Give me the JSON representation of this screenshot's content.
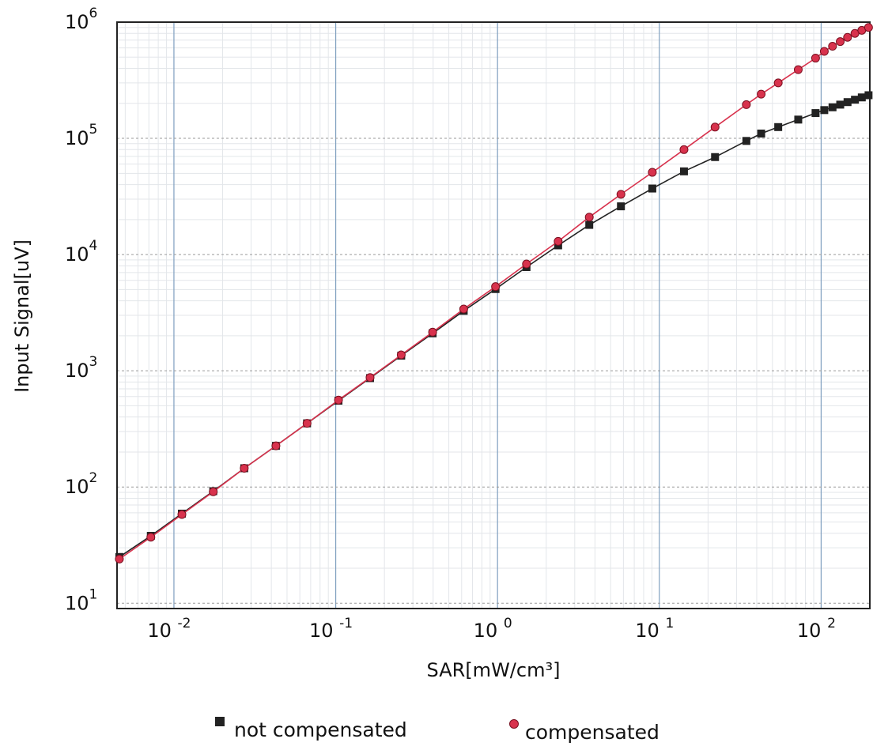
{
  "chart_data": {
    "type": "line",
    "xscale": "log",
    "yscale": "log",
    "xlabel": "SAR[mW/cm³]",
    "ylabel": "Input Signal[uV]",
    "xlim": [
      0.00445,
      200
    ],
    "ylim": [
      9,
      1000000
    ],
    "grid": true,
    "legend_position": "bottom",
    "x_ticks": [
      {
        "base": "10",
        "exp": "-2",
        "value": 0.01
      },
      {
        "base": "10",
        "exp": "-1",
        "value": 0.1
      },
      {
        "base": "10",
        "exp": "0",
        "value": 1
      },
      {
        "base": "10",
        "exp": "1",
        "value": 10
      },
      {
        "base": "10",
        "exp": "2",
        "value": 100
      }
    ],
    "y_ticks": [
      {
        "base": "10",
        "exp": "1",
        "value": 10
      },
      {
        "base": "10",
        "exp": "2",
        "value": 100
      },
      {
        "base": "10",
        "exp": "3",
        "value": 1000
      },
      {
        "base": "10",
        "exp": "4",
        "value": 10000
      },
      {
        "base": "10",
        "exp": "5",
        "value": 100000
      },
      {
        "base": "10",
        "exp": "6",
        "value": 1000000
      }
    ],
    "series": [
      {
        "name": "not compensated",
        "color": "#222222",
        "marker": "square",
        "x": [
          0.0046,
          0.0072,
          0.0112,
          0.0175,
          0.0272,
          0.0427,
          0.0665,
          0.104,
          0.163,
          0.254,
          0.397,
          0.618,
          0.972,
          1.51,
          2.37,
          3.69,
          5.79,
          9.05,
          14.2,
          22.1,
          34.5,
          42.6,
          54.3,
          72.2,
          92.4,
          104.6,
          117.6,
          131.2,
          145.6,
          161.8,
          178.4,
          196.4
        ],
        "y": [
          25,
          38,
          59,
          92,
          145,
          226,
          353,
          553,
          865,
          1350,
          2100,
          3280,
          5050,
          7800,
          12000,
          18000,
          26000,
          37000,
          52000,
          69000,
          95000,
          110000,
          125000,
          145000,
          165000,
          175000,
          185000,
          195000,
          205000,
          215000,
          225000,
          235000
        ]
      },
      {
        "name": "compensated",
        "color": "#d8324d",
        "marker": "circle",
        "x": [
          0.0046,
          0.0072,
          0.0112,
          0.0175,
          0.0272,
          0.0427,
          0.0665,
          0.104,
          0.163,
          0.254,
          0.397,
          0.618,
          0.972,
          1.51,
          2.37,
          3.69,
          5.79,
          9.05,
          14.2,
          22.1,
          34.5,
          42.6,
          54.3,
          72.2,
          92.4,
          104.6,
          117.6,
          131.2,
          145.6,
          161.8,
          178.4,
          196.4
        ],
        "y": [
          24,
          37,
          58,
          91,
          145,
          226,
          353,
          560,
          875,
          1370,
          2150,
          3400,
          5300,
          8300,
          13000,
          21000,
          33000,
          51000,
          80000,
          125000,
          195000,
          240000,
          300000,
          390000,
          490000,
          560000,
          620000,
          680000,
          740000,
          800000,
          850000,
          900000
        ]
      }
    ]
  }
}
